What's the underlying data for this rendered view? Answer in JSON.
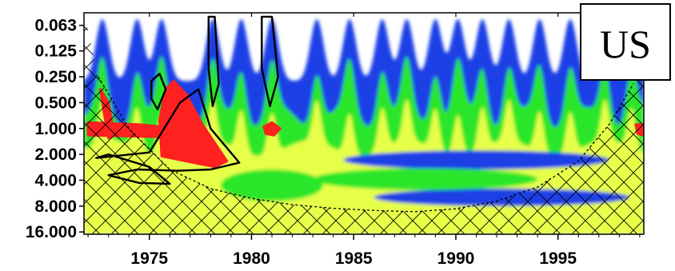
{
  "chart_data": {
    "type": "heatmap",
    "title": "",
    "badge": "US",
    "xlabel": "",
    "ylabel": "",
    "x_range": [
      1971.8,
      1999.2
    ],
    "x_ticks": [
      {
        "value": 1975,
        "label": "1975"
      },
      {
        "value": 1980,
        "label": "1980"
      },
      {
        "value": 1985,
        "label": "1985"
      },
      {
        "value": 1990,
        "label": "1990"
      },
      {
        "value": 1995,
        "label": "1995"
      }
    ],
    "y_scale": "log2",
    "y_range": [
      0.045,
      17
    ],
    "y_ticks": [
      {
        "value": 0.063,
        "label": "0.063"
      },
      {
        "value": 0.125,
        "label": "0.125"
      },
      {
        "value": 0.25,
        "label": "0.250"
      },
      {
        "value": 0.5,
        "label": "0.500"
      },
      {
        "value": 1,
        "label": "1.000"
      },
      {
        "value": 2,
        "label": "2.000"
      },
      {
        "value": 4,
        "label": "4.000"
      },
      {
        "value": 8,
        "label": "8.000"
      },
      {
        "value": 16,
        "label": "16.000"
      }
    ],
    "colors": {
      "background": "#ffffff",
      "low": "#1a3fe6",
      "mid_low": "#2ce62c",
      "mid_high": "#e6ff4a",
      "high": "#ff2020",
      "contour": "#000000",
      "hatch": "#000000"
    },
    "cone_of_influence": {
      "x": [
        1972.5,
        1974,
        1976,
        1978,
        1980,
        1982,
        1984,
        1986,
        1988,
        1990,
        1992,
        1994,
        1996,
        1997.5,
        1998.7
      ],
      "y": [
        0.25,
        1.0,
        3.0,
        5.0,
        6.5,
        7.7,
        8.5,
        9.0,
        9.3,
        8.6,
        7.0,
        4.8,
        2.4,
        0.9,
        0.3
      ]
    },
    "high_power_regions": [
      {
        "x": [
          1972.6,
          1973.0,
          1973.2,
          1973.5,
          1973.0,
          1972.8
        ],
        "y": [
          0.35,
          0.5,
          0.95,
          1.1,
          1.3,
          0.7
        ]
      },
      {
        "x": [
          1972.0,
          1974.5,
          1976.5,
          1975.5,
          1972.0
        ],
        "y": [
          0.85,
          0.9,
          1.0,
          1.25,
          1.2
        ]
      },
      {
        "x": [
          1975.5,
          1975.8,
          1976.2,
          1976.8,
          1977.6,
          1978.8,
          1978.2,
          1975.6
        ],
        "y": [
          0.8,
          0.35,
          0.28,
          0.4,
          0.9,
          2.4,
          2.8,
          2.1
        ]
      },
      {
        "x": [
          1980.6,
          1981.0,
          1981.4,
          1981.1,
          1980.7
        ],
        "y": [
          0.95,
          0.85,
          1.0,
          1.2,
          1.15
        ]
      },
      {
        "x": [
          1998.8,
          1999.2,
          1999.2,
          1998.9
        ],
        "y": [
          0.9,
          0.9,
          1.2,
          1.15
        ]
      }
    ],
    "significance_contours": [
      {
        "x": [
          1972.4,
          1975.0,
          1976.5,
          1977.4,
          1978.0,
          1979.4,
          1978.0,
          1976.4,
          1974.4,
          1973.0,
          1974.5,
          1976.0,
          1975.0,
          1973.0,
          1972.4
        ],
        "y": [
          2.2,
          1.9,
          0.5,
          0.35,
          1.0,
          2.5,
          3.0,
          3.1,
          3.0,
          3.5,
          4.3,
          4.4,
          2.8,
          2.0,
          2.2
        ]
      },
      {
        "x": [
          1975.1,
          1975.5,
          1975.8,
          1975.4,
          1975.1
        ],
        "y": [
          0.28,
          0.23,
          0.35,
          0.6,
          0.45
        ]
      },
      {
        "x": [
          1977.9,
          1978.2,
          1978.4,
          1978.1,
          1977.9
        ],
        "y": [
          0.05,
          0.05,
          0.3,
          0.55,
          0.2
        ]
      },
      {
        "x": [
          1980.5,
          1981.0,
          1981.3,
          1980.9,
          1980.5
        ],
        "y": [
          0.05,
          0.05,
          0.25,
          0.55,
          0.2
        ]
      }
    ]
  }
}
